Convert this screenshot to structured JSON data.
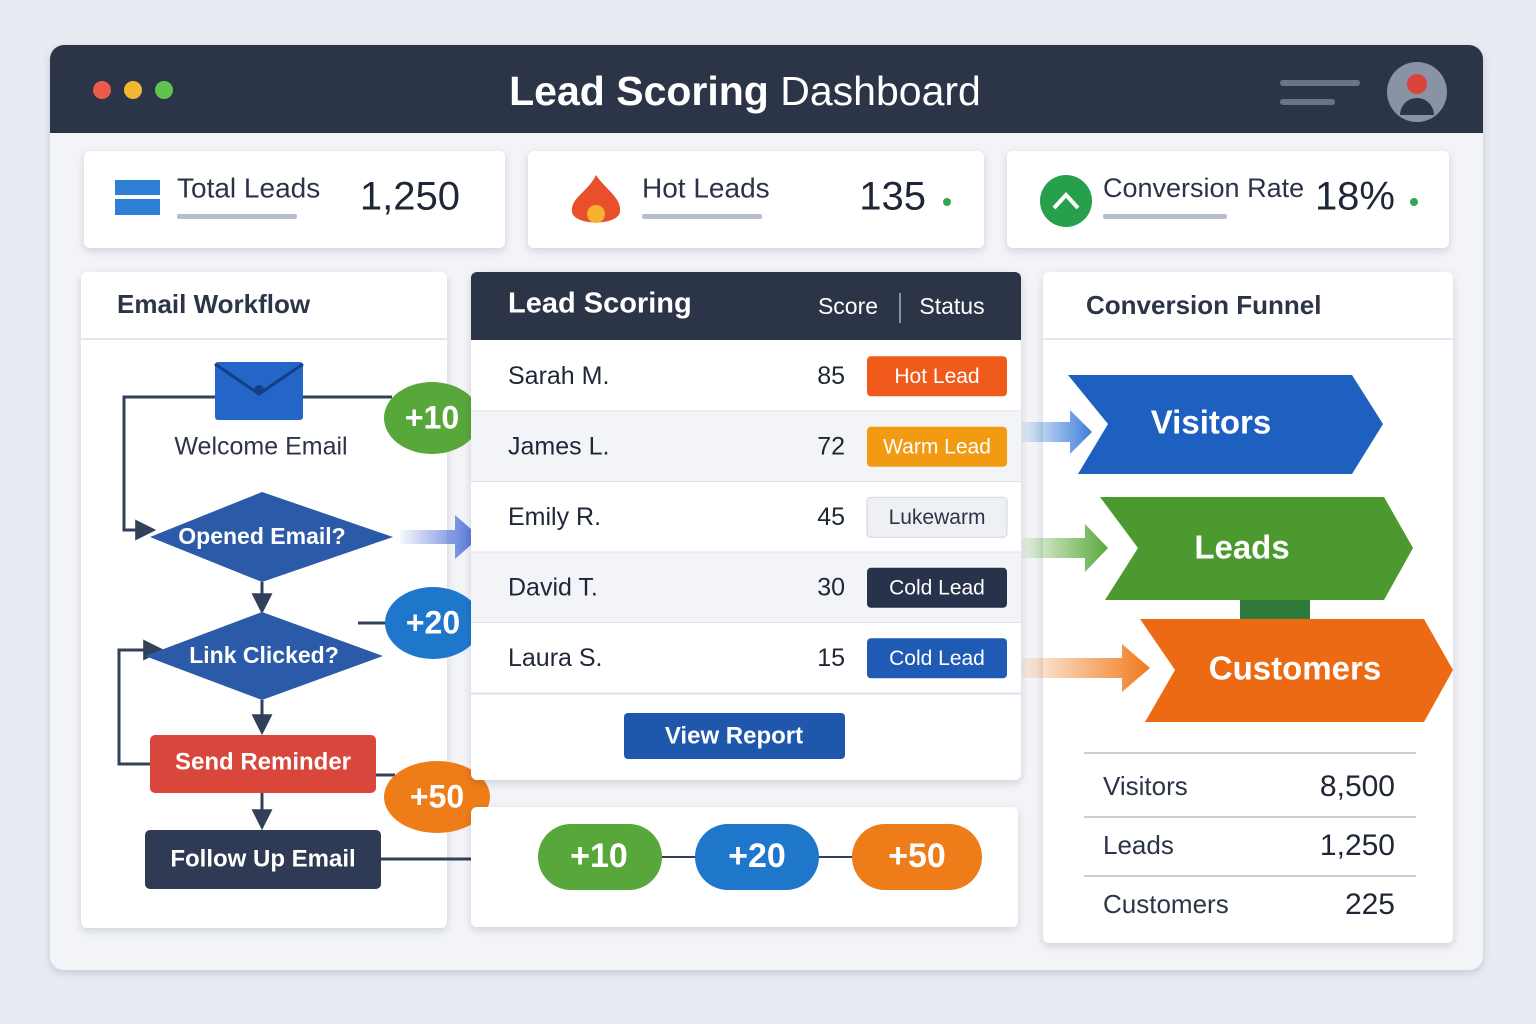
{
  "header": {
    "title_bold": "Lead Scoring",
    "title_light": "Dashboard"
  },
  "stats": [
    {
      "label": "Total Leads",
      "value": "1,250"
    },
    {
      "label": "Hot Leads",
      "value": "135"
    },
    {
      "label": "Conversion Rate",
      "value": "18%"
    }
  ],
  "workflow": {
    "title": "Email Workflow",
    "steps": [
      "Welcome Email",
      "Opened Email?",
      "Link Clicked?",
      "Send Reminder",
      "Follow Up Email"
    ],
    "badges": [
      "+10",
      "+20",
      "+50"
    ]
  },
  "scoring": {
    "title": "Lead Scoring",
    "columns": [
      "Score",
      "Status"
    ],
    "rows": [
      [
        "Sarah M.",
        "85",
        "Hot Lead"
      ],
      [
        "James L.",
        "72",
        "Warm Lead"
      ],
      [
        "Emily R.",
        "45",
        "Lukewarm"
      ],
      [
        "David T.",
        "30",
        "Cold Lead"
      ],
      [
        "Laura S.",
        "15",
        "Cold Lead"
      ]
    ],
    "button": "View Report",
    "chain": [
      "+10",
      "+20",
      "+50"
    ]
  },
  "funnel": {
    "title": "Conversion Funnel",
    "stages": [
      "Visitors",
      "Leads",
      "Customers"
    ],
    "table": [
      [
        "Visitors",
        "8,500"
      ],
      [
        "Leads",
        "1,250"
      ],
      [
        "Customers",
        "225"
      ]
    ]
  }
}
